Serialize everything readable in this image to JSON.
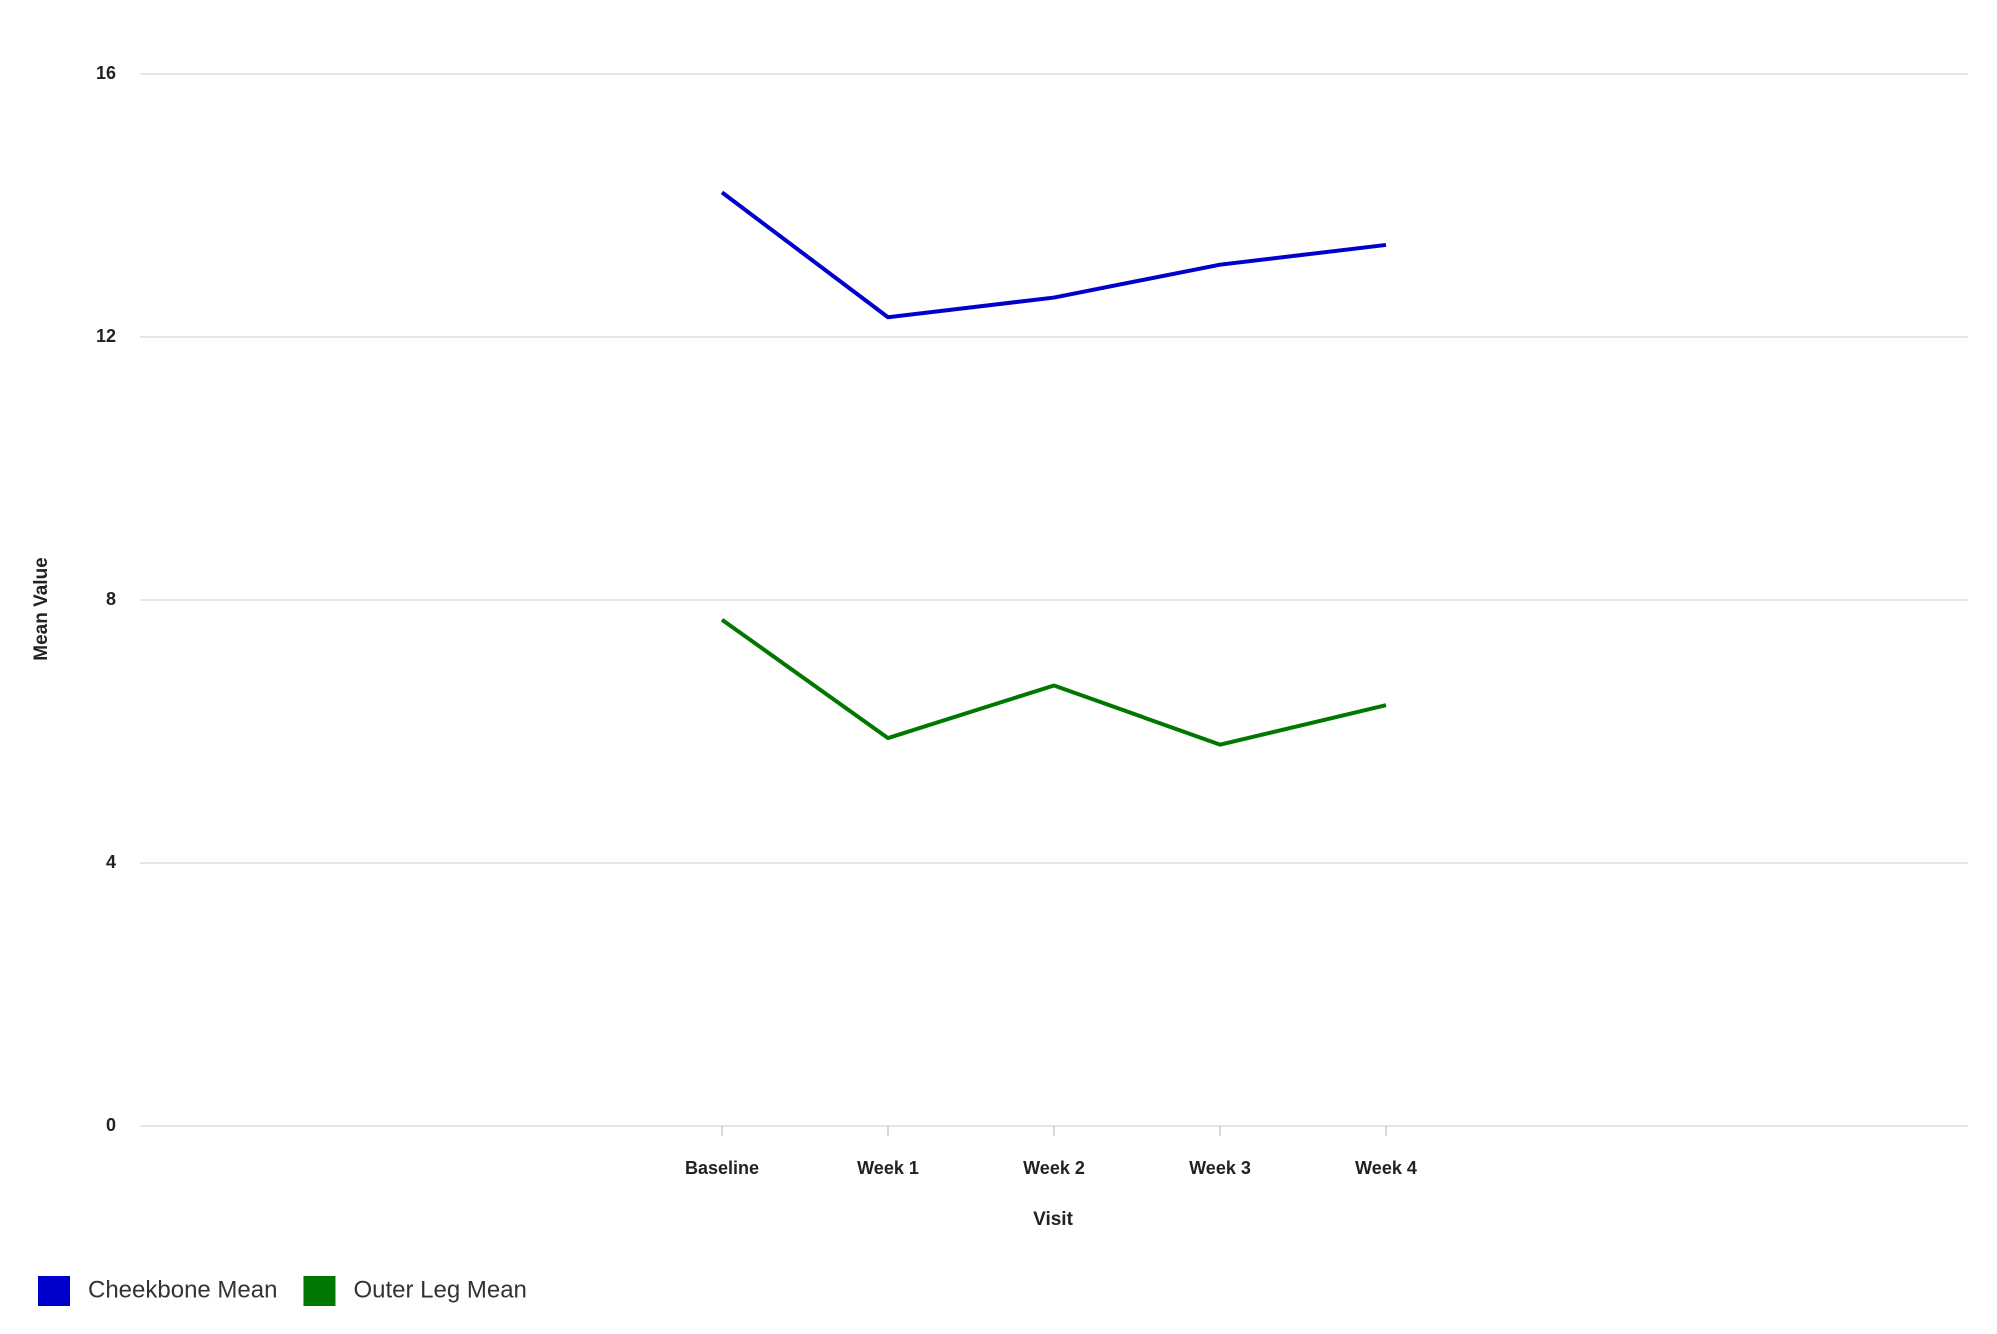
{
  "chart_data": {
    "type": "line",
    "x_label": "Visit",
    "y_label": "Mean Value",
    "categories": [
      "Baseline",
      "Week 1",
      "Week 2",
      "Week 3",
      "Week 4"
    ],
    "series": [
      {
        "name": "Cheekbone Mean",
        "color": "#0000cc",
        "values": [
          14.2,
          12.3,
          12.6,
          13.1,
          13.4
        ]
      },
      {
        "name": "Outer Leg Mean",
        "color": "#007700",
        "values": [
          7.7,
          5.9,
          6.7,
          5.8,
          6.4
        ]
      }
    ],
    "ylim": [
      0,
      16
    ],
    "yticks": [
      0,
      4,
      8,
      12,
      16
    ],
    "grid": true,
    "legend": "bottom-left"
  }
}
